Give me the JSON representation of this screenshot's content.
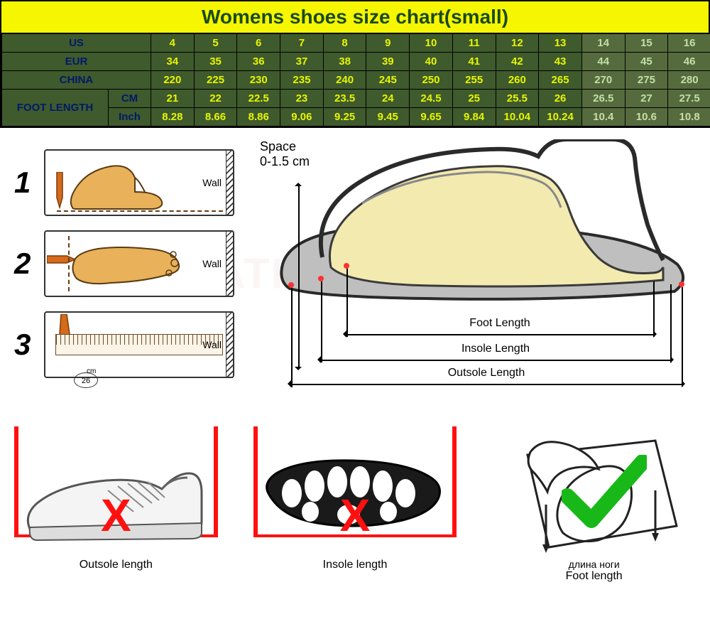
{
  "title_bar": "Womens shoes size chart(small)",
  "row_labels": {
    "us": "US",
    "eur": "EUR",
    "china": "CHINA",
    "foot_length": "FOOT LENGTH",
    "cm": "CM",
    "inch": "Inch"
  },
  "dark_color": "#3f5a2d",
  "light_color": "#556b3d",
  "rows": {
    "us": [
      "4",
      "5",
      "6",
      "7",
      "8",
      "9",
      "10",
      "11",
      "12",
      "13",
      "14",
      "15",
      "16"
    ],
    "eur": [
      "34",
      "35",
      "36",
      "37",
      "38",
      "39",
      "40",
      "41",
      "42",
      "43",
      "44",
      "45",
      "46"
    ],
    "china": [
      "220",
      "225",
      "230",
      "235",
      "240",
      "245",
      "250",
      "255",
      "260",
      "265",
      "270",
      "275",
      "280"
    ],
    "cm": [
      "21",
      "22",
      "22.5",
      "23",
      "23.5",
      "24",
      "24.5",
      "25",
      "25.5",
      "26",
      "26.5",
      "27",
      "27.5"
    ],
    "inch": [
      "8.28",
      "8.66",
      "8.86",
      "9.06",
      "9.25",
      "9.45",
      "9.65",
      "9.84",
      "10.04",
      "10.24",
      "10.4",
      "10.6",
      "10.8"
    ]
  },
  "light_start_index": 10,
  "steps": {
    "nums": [
      "1",
      "2",
      "3"
    ],
    "wall": "Wall",
    "ruler_value": "26",
    "ruler_unit": "cm"
  },
  "diagram": {
    "space_label_1": "Space",
    "space_label_2": "0-1.5 cm",
    "foot_length": "Foot Length",
    "insole_length": "Insole Length",
    "outsole_length": "Outsole Length"
  },
  "bottom": {
    "outsole": "Outsole length",
    "insole": "Insole length",
    "foot_ru": "длина ноги",
    "foot_en": "Foot length",
    "wrong": "X",
    "right": "✓"
  },
  "watermark": "WHEATHUMMINGBIRD"
}
